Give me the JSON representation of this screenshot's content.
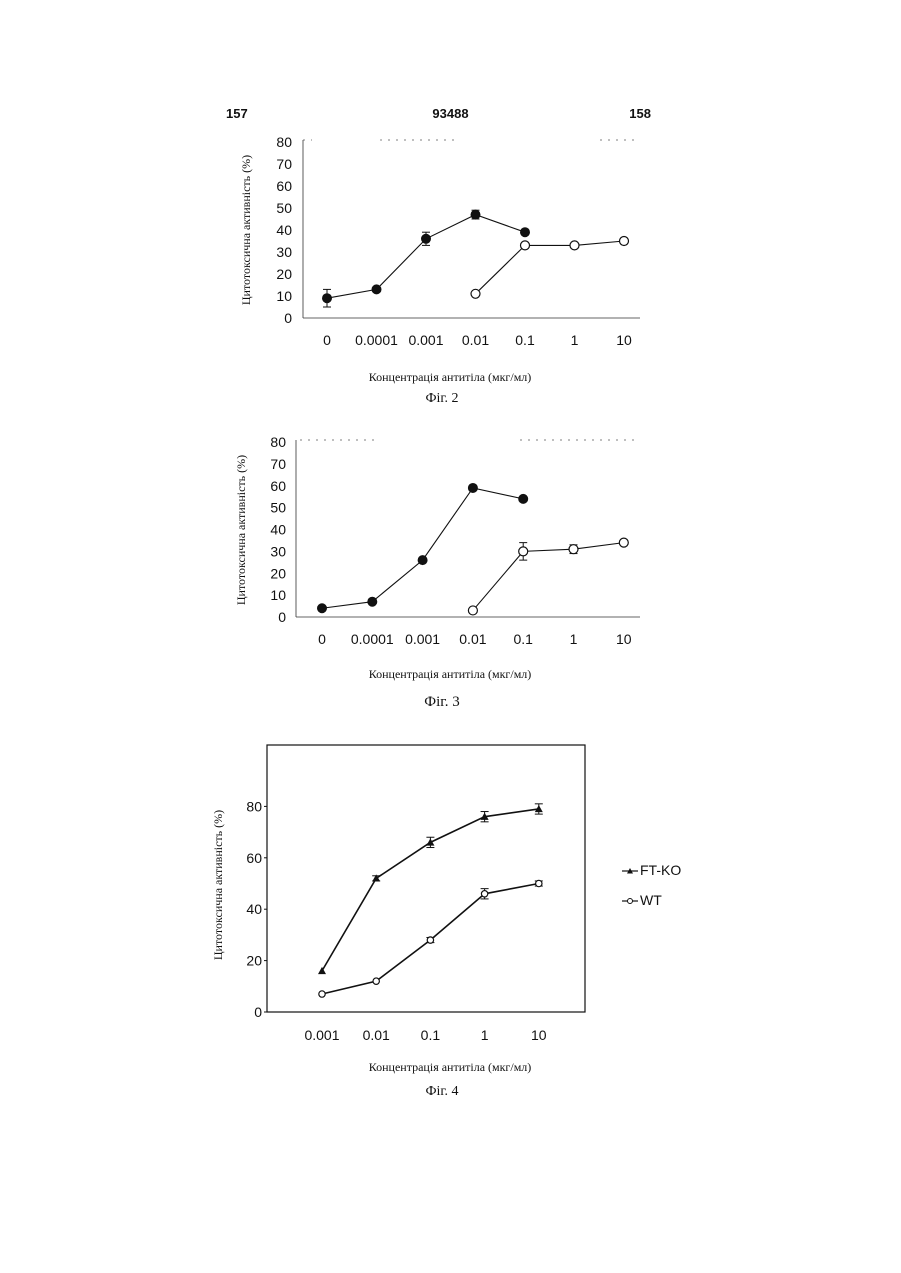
{
  "page": {
    "left_number": "157",
    "center_number": "93488",
    "right_number": "158"
  },
  "chart_data": [
    {
      "type": "line",
      "caption": "Фіг. 2",
      "xlabel": "Концентрація антитіла (мкг/мл)",
      "ylabel": "Цитотоксична активність (%)",
      "categories": [
        "0",
        "0.0001",
        "0.001",
        "0.01",
        "0.1",
        "1",
        "10"
      ],
      "yticks": [
        "0",
        "10",
        "20",
        "30",
        "40",
        "50",
        "60",
        "70",
        "80"
      ],
      "ylim": [
        0,
        80
      ],
      "series": [
        {
          "marker": "filled-circle",
          "color": "#111111",
          "x": [
            "0",
            "0.0001",
            "0.001",
            "0.01",
            "0.1"
          ],
          "values": [
            9,
            13,
            36,
            47,
            39
          ],
          "errors": [
            4,
            1,
            3,
            2,
            1
          ]
        },
        {
          "marker": "open-circle",
          "color": "#111111",
          "x": [
            "0.01",
            "0.1",
            "1",
            "10"
          ],
          "values": [
            11,
            33,
            33,
            35
          ],
          "errors": [
            0,
            1,
            0,
            0
          ]
        }
      ]
    },
    {
      "type": "line",
      "caption": "Фіг. 3",
      "xlabel": "Концентрація антитіла (мкг/мл)",
      "ylabel": "Цитотоксична активність (%)",
      "categories": [
        "0",
        "0.0001",
        "0.001",
        "0.01",
        "0.1",
        "1",
        "10"
      ],
      "yticks": [
        "0",
        "10",
        "20",
        "30",
        "40",
        "50",
        "60",
        "70",
        "80"
      ],
      "ylim": [
        0,
        80
      ],
      "series": [
        {
          "marker": "filled-circle",
          "color": "#111111",
          "x": [
            "0",
            "0.0001",
            "0.001",
            "0.01",
            "0.1"
          ],
          "values": [
            4,
            7,
            26,
            59,
            54
          ],
          "errors": [
            0,
            0,
            0,
            1,
            0
          ]
        },
        {
          "marker": "open-circle",
          "color": "#111111",
          "x": [
            "0.01",
            "0.1",
            "1",
            "10"
          ],
          "values": [
            3,
            30,
            31,
            34
          ],
          "errors": [
            0,
            4,
            2,
            1
          ]
        }
      ]
    },
    {
      "type": "line",
      "caption": "Фіг. 4",
      "xlabel": "Концентрація антитіла (мкг/мл)",
      "ylabel": "Цитотоксична активність (%)",
      "categories": [
        "0.001",
        "0.01",
        "0.1",
        "1",
        "10"
      ],
      "yticks": [
        "0",
        "20",
        "40",
        "60",
        "80"
      ],
      "ylim": [
        0,
        100
      ],
      "legend": "right",
      "series": [
        {
          "name": "FT-KO",
          "marker": "filled-triangle",
          "color": "#111111",
          "x": [
            "0.001",
            "0.01",
            "0.1",
            "1",
            "10"
          ],
          "values": [
            16,
            52,
            66,
            76,
            79
          ],
          "errors": [
            0,
            1,
            2,
            2,
            2
          ]
        },
        {
          "name": "WT",
          "marker": "open-circle",
          "color": "#111111",
          "x": [
            "0.001",
            "0.01",
            "0.1",
            "1",
            "10"
          ],
          "values": [
            7,
            12,
            28,
            46,
            50
          ],
          "errors": [
            0,
            0,
            1,
            2,
            1
          ]
        }
      ]
    }
  ]
}
